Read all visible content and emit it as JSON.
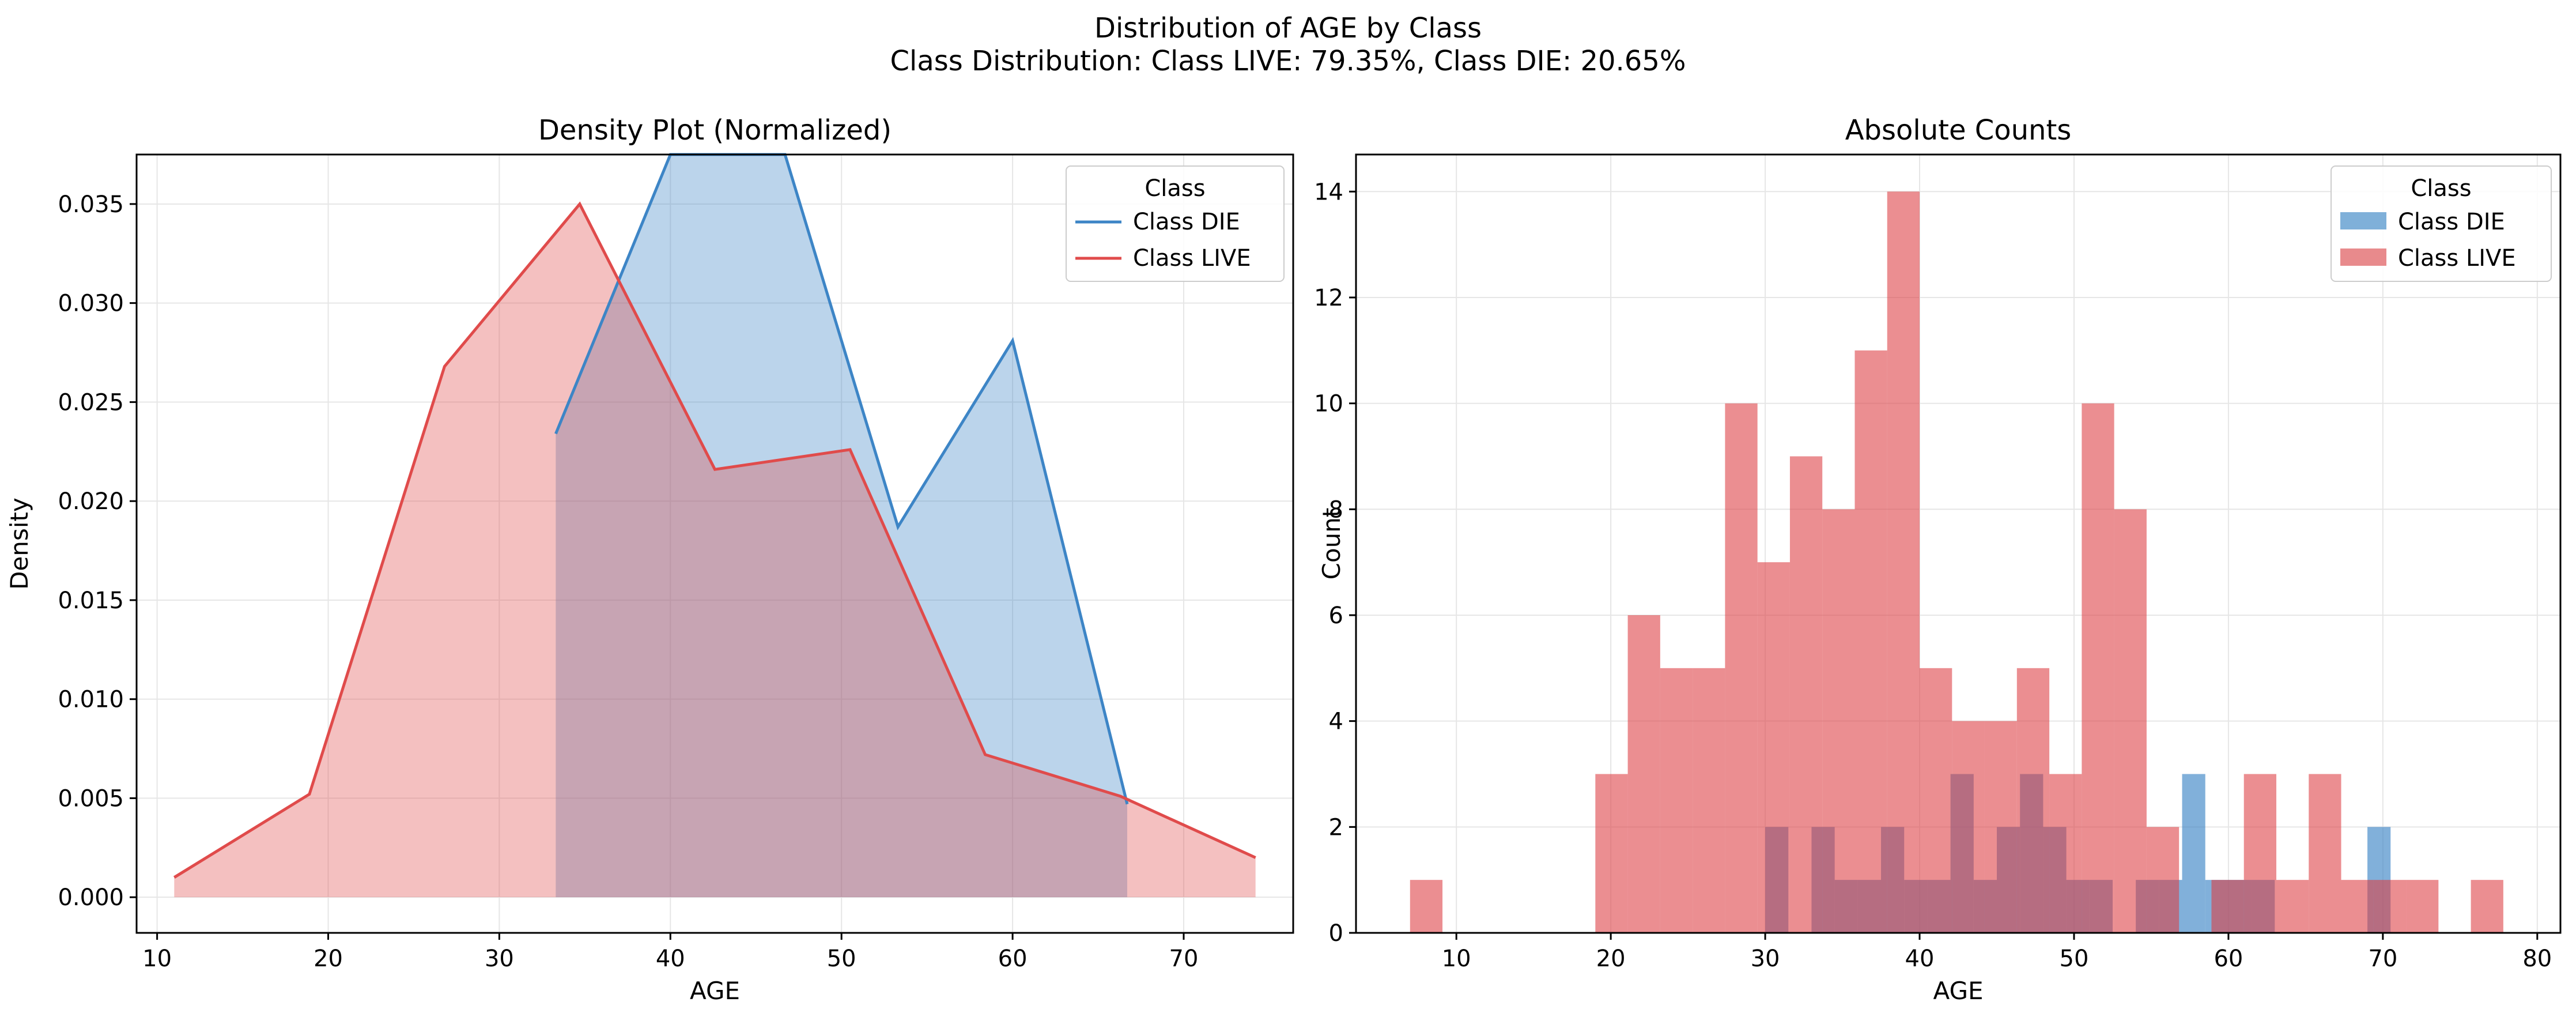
{
  "suptitle_line1": "Distribution of AGE by Class",
  "suptitle_line2": "Class Distribution: Class LIVE: 79.35%, Class DIE: 20.65%",
  "colors": {
    "die": "#3d85c6",
    "live": "#e04b4b",
    "die_bar": "#7fb0d9",
    "live_bar": "#e88a8c"
  },
  "chart_data": [
    {
      "type": "area",
      "title": "Density Plot (Normalized)",
      "xlabel": "AGE",
      "ylabel": "Density",
      "xlim": [
        8.8,
        76.4
      ],
      "ylim": [
        -0.0018,
        0.0375
      ],
      "xticks": [
        10,
        20,
        30,
        40,
        50,
        60,
        70
      ],
      "yticks": [
        0.0,
        0.005,
        0.01,
        0.015,
        0.02,
        0.025,
        0.03,
        0.035
      ],
      "ytick_labels": [
        "0.000",
        "0.005",
        "0.010",
        "0.015",
        "0.020",
        "0.025",
        "0.030",
        "0.035"
      ],
      "grid": true,
      "legend": {
        "title": "Class",
        "placement": "top-right",
        "entries": [
          "Class DIE",
          "Class LIVE"
        ]
      },
      "series": [
        {
          "name": "Class DIE",
          "x": [
            33.3,
            40.0,
            46.7,
            53.3,
            60.0,
            66.7
          ],
          "y": [
            0.0234,
            0.0375,
            0.0375,
            0.0187,
            0.0281,
            0.0047
          ]
        },
        {
          "name": "Class LIVE",
          "x": [
            11.0,
            18.9,
            26.8,
            34.7,
            42.6,
            50.5,
            58.4,
            66.3,
            74.2
          ],
          "y": [
            0.001,
            0.0052,
            0.0268,
            0.035,
            0.0216,
            0.0226,
            0.0072,
            0.0051,
            0.002
          ]
        }
      ]
    },
    {
      "type": "bar",
      "title": "Absolute Counts",
      "xlabel": "AGE",
      "ylabel": "Count",
      "xlim": [
        3.5,
        81.5
      ],
      "ylim": [
        0,
        14.7
      ],
      "xticks": [
        10,
        20,
        30,
        40,
        50,
        60,
        70,
        80
      ],
      "yticks": [
        0,
        2,
        4,
        6,
        8,
        10,
        12,
        14
      ],
      "grid": true,
      "legend": {
        "title": "Class",
        "placement": "top-right",
        "entries": [
          "Class DIE",
          "Class LIVE"
        ]
      },
      "bin_width": 2.1,
      "series": [
        {
          "name": "Class LIVE",
          "bin_starts": [
            7.0,
            19.0,
            21.1,
            23.2,
            25.3,
            27.4,
            29.5,
            31.6,
            33.7,
            35.8,
            37.9,
            40.0,
            42.1,
            44.2,
            46.3,
            48.4,
            50.5,
            52.6,
            54.7,
            58.9,
            61.0,
            63.1,
            65.2,
            67.3,
            69.4,
            71.5,
            75.7
          ],
          "values": [
            1,
            3,
            6,
            5,
            5,
            10,
            7,
            9,
            8,
            11,
            14,
            5,
            4,
            4,
            5,
            3,
            10,
            8,
            2,
            1,
            3,
            1,
            3,
            1,
            1,
            1,
            1
          ]
        },
        {
          "name": "Class DIE",
          "bin_starts": [
            30.0,
            33.0,
            34.5,
            36.0,
            37.5,
            39.0,
            40.5,
            42.0,
            43.5,
            45.0,
            46.5,
            48.0,
            49.5,
            51.0,
            54.0,
            55.5,
            57.0,
            58.5,
            60.0,
            61.5,
            69.0
          ],
          "bin_width": 1.5,
          "values": [
            2,
            2,
            1,
            1,
            2,
            1,
            1,
            3,
            1,
            2,
            3,
            2,
            1,
            1,
            1,
            1,
            3,
            1,
            1,
            1,
            2
          ]
        }
      ]
    }
  ]
}
